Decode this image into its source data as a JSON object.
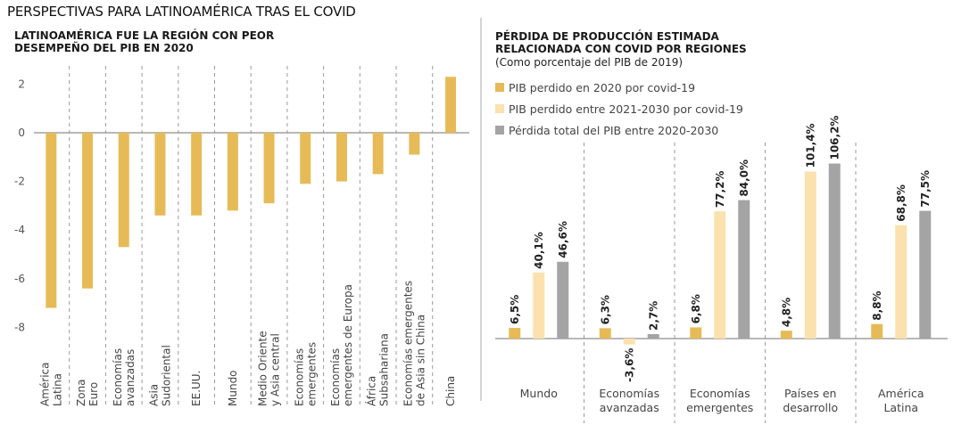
{
  "page_title": "PERSPECTIVAS PARA LATINOAMÉRICA TRAS EL COVID",
  "colors": {
    "gold": "#e6bb57",
    "light_gold": "#fbe1ad",
    "gray": "#a5a4a5",
    "axis": "#a0a0a0",
    "grid": "#9a9a9a"
  },
  "chart_data": [
    {
      "type": "bar",
      "title": "LATINOAMÉRICA FUE LA REGIÓN CON PEOR DESEMPEÑO DEL PIB EN 2020",
      "title_lines": [
        "LATINOAMÉRICA FUE LA REGIÓN CON PEOR",
        "DESEMPEÑO DEL PIB EN 2020"
      ],
      "xlabel": "",
      "ylabel": "",
      "ylim": [
        -8.5,
        2.5
      ],
      "yticks": [
        2,
        0,
        -2,
        -4,
        -6,
        -8
      ],
      "grid": "vertical-dashed-separators",
      "categories": [
        [
          "América",
          "Latina"
        ],
        [
          "Zona",
          "Euro"
        ],
        [
          "Economías",
          "avanzadas"
        ],
        [
          "Asia",
          "Sudoriental"
        ],
        [
          "EE.UU."
        ],
        [
          "Mundo"
        ],
        [
          "Medio Oriente",
          "y Asia central"
        ],
        [
          "Economías",
          "emergentes"
        ],
        [
          "Economías",
          "emergentes de Europa"
        ],
        [
          "África",
          "Subsahariana"
        ],
        [
          "Economías emergentes",
          "de Asia sin China"
        ],
        [
          "China"
        ]
      ],
      "values": [
        -7.2,
        -6.4,
        -4.7,
        -3.4,
        -3.4,
        -3.2,
        -2.9,
        -2.1,
        -2.0,
        -1.7,
        -0.9,
        2.3
      ]
    },
    {
      "type": "bar",
      "title": "PÉRDIDA DE PRODUCCIÓN ESTIMADA RELACIONADA CON COVID POR REGIONES",
      "title_lines": [
        "PÉRDIDA DE PRODUCCIÓN ESTIMADA",
        "RELACIONADA CON COVID POR REGIONES"
      ],
      "subtitle": "(Como porcentaje del PIB de 2019)",
      "xlabel": "",
      "ylabel": "",
      "ylim": [
        -12,
        115
      ],
      "legend_position": "top-left",
      "categories": [
        [
          "Mundo"
        ],
        [
          "Economías",
          "avanzadas"
        ],
        [
          "Economías",
          "emergentes"
        ],
        [
          "Países en",
          "desarrollo"
        ],
        [
          "América",
          "Latina"
        ]
      ],
      "series": [
        {
          "name": "PIB perdido en 2020 por covid-19",
          "color": "#e6bb57",
          "values": [
            6.5,
            6.3,
            6.8,
            4.8,
            8.8
          ],
          "labels": [
            "6,5%",
            "6,3%",
            "6,8%",
            "4,8%",
            "8,8%"
          ]
        },
        {
          "name": "PIB perdido entre 2021-2030 por covid-19",
          "color": "#fbe1ad",
          "values": [
            40.1,
            -3.6,
            77.2,
            101.4,
            68.8
          ],
          "labels": [
            "40,1%",
            "-3,6%",
            "77,2%",
            "101,4%",
            "68,8%"
          ]
        },
        {
          "name": "Pérdida total del PIB entre 2020-2030",
          "color": "#a5a4a5",
          "values": [
            46.6,
            2.7,
            84.0,
            106.2,
            77.5
          ],
          "labels": [
            "46,6%",
            "2,7%",
            "84,0%",
            "106,2%",
            "77,5%"
          ]
        }
      ]
    }
  ]
}
